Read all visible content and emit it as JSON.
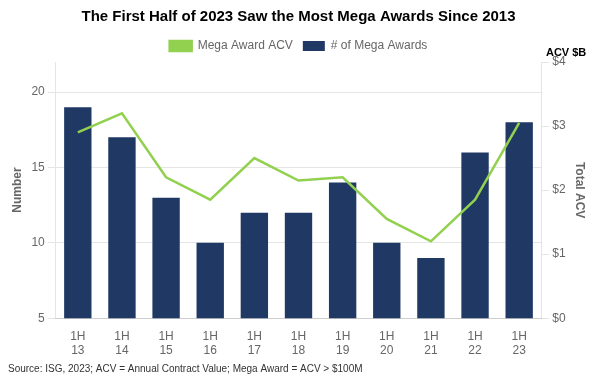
{
  "chart_data": {
    "type": "bar",
    "title": "The First Half of 2023 Saw the Most Mega Awards Since 2013",
    "categories": [
      "1H\n13",
      "1H\n14",
      "1H\n15",
      "1H\n16",
      "1H\n17",
      "1H\n18",
      "1H\n19",
      "1H\n20",
      "1H\n21",
      "1H\n22",
      "1H\n23"
    ],
    "series": [
      {
        "name": "# of Mega Awards",
        "type": "bar",
        "color": "#1F3864",
        "values": [
          19,
          17,
          13,
          10,
          12,
          12,
          14,
          10,
          9,
          16,
          18
        ]
      },
      {
        "name": "Mega Award ACV",
        "type": "line",
        "color": "#92D050",
        "axis": "y2",
        "values": [
          2.9,
          3.2,
          2.2,
          1.85,
          2.5,
          2.15,
          2.2,
          1.55,
          1.2,
          1.85,
          3.05
        ]
      }
    ],
    "ylabel": "Number",
    "y2label": "Total ACV",
    "ylim": [
      5,
      22
    ],
    "yticks": [
      5,
      10,
      15,
      20
    ],
    "y2lim": [
      0,
      4
    ],
    "y2ticks": [
      {
        "value": 0,
        "label": "$0"
      },
      {
        "value": 1,
        "label": "$1"
      },
      {
        "value": 2,
        "label": "$2"
      },
      {
        "value": 3,
        "label": "$3"
      },
      {
        "value": 4,
        "label": "$4"
      }
    ],
    "annotation": "ACV $B",
    "source": "Source: ISG, 2023; ACV = Annual Contract Value; Mega Award = ACV > $100M",
    "grid": true,
    "legend": "top"
  }
}
